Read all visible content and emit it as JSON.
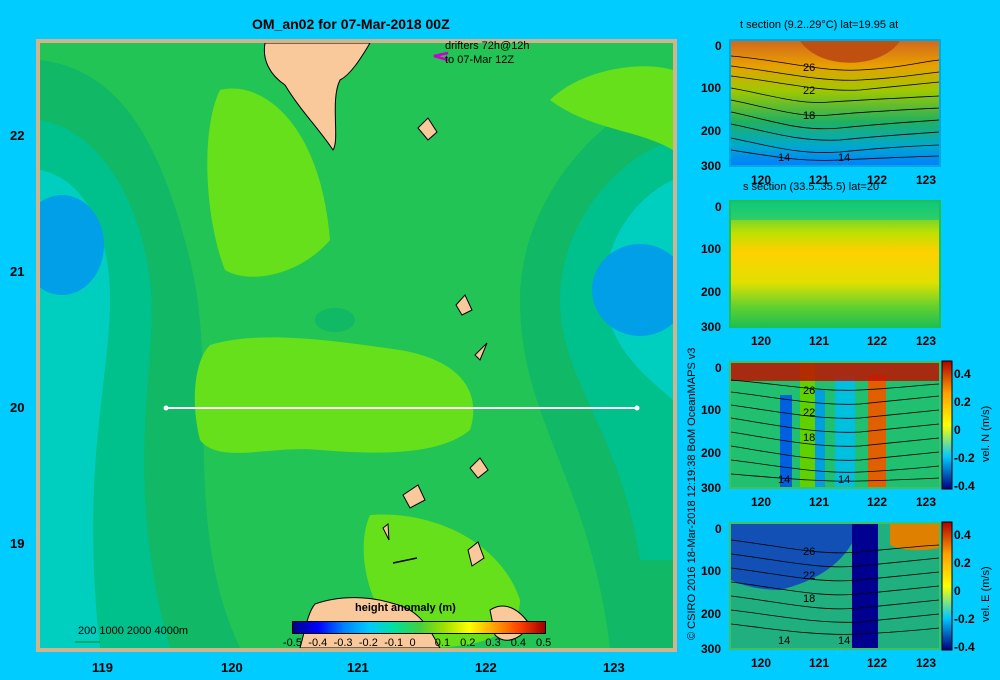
{
  "main": {
    "title": "OM_an02 for 07-Mar-2018 00Z",
    "drifters_line1": "drifters 72h@12h",
    "drifters_line2": "to 07-Mar 12Z",
    "depth_legend": "200  1000  2000  4000m",
    "colorbar_label": "height anomaly  (m)",
    "colorbar_ticks": [
      "-0.5",
      "-0.4",
      "-0.3",
      "-0.2",
      "-0.1",
      "0",
      "0.1",
      "0.2",
      "0.3",
      "0.4",
      "0.5"
    ],
    "credit": "© CSIRO 2016   18-Mar-2018 12:19:38 BoM OceanMAPS v3"
  },
  "colors": {
    "background": "#00ccff",
    "land": "#f9c99b",
    "frame": "#d2b48c",
    "drifter": "#cc00cc"
  },
  "chart_data": [
    {
      "type": "heatmap",
      "title": "OM_an02 for 07-Mar-2018 00Z",
      "colorbar_label": "height anomaly  (m)",
      "colorbar_range": [
        -0.5,
        0.5
      ],
      "x_ticks": [
        "119",
        "120",
        "121",
        "122",
        "123"
      ],
      "y_ticks": [
        "22",
        "21",
        "20",
        "19"
      ],
      "xlim": [
        118.5,
        123.5
      ],
      "ylim": [
        18.3,
        22.7
      ],
      "section_line": {
        "lat": 20.0,
        "lon_start": 119.5,
        "lon_end": 123.2
      }
    },
    {
      "type": "heatmap",
      "title": "t section (9.2..29°C) lat=19.95 at",
      "x_ticks": [
        "120",
        "121",
        "122",
        "123"
      ],
      "y_ticks": [
        "0",
        "100",
        "200",
        "300"
      ],
      "contour_labels": [
        "26",
        "22",
        "18",
        "14",
        "14"
      ]
    },
    {
      "type": "heatmap",
      "title": "s section (33.5..35.5) lat=20",
      "x_ticks": [
        "120",
        "121",
        "122",
        "123"
      ],
      "y_ticks": [
        "0",
        "100",
        "200",
        "300"
      ]
    },
    {
      "type": "heatmap",
      "title": "",
      "x_ticks": [
        "120",
        "121",
        "122",
        "123"
      ],
      "y_ticks": [
        "0",
        "100",
        "200",
        "300"
      ],
      "contour_labels": [
        "26",
        "22",
        "18",
        "14",
        "14"
      ],
      "colorbar_label": "vel. N  (m/s)",
      "colorbar_ticks": [
        "0.4",
        "0.2",
        "0",
        "-0.2",
        "-0.4"
      ]
    },
    {
      "type": "heatmap",
      "title": "",
      "x_ticks": [
        "120",
        "121",
        "122",
        "123"
      ],
      "y_ticks": [
        "0",
        "100",
        "200",
        "300"
      ],
      "contour_labels": [
        "26",
        "22",
        "18",
        "14",
        "14"
      ],
      "colorbar_label": "vel. E  (m/s)",
      "colorbar_ticks": [
        "0.4",
        "0.2",
        "0",
        "-0.2",
        "-0.4"
      ]
    }
  ]
}
